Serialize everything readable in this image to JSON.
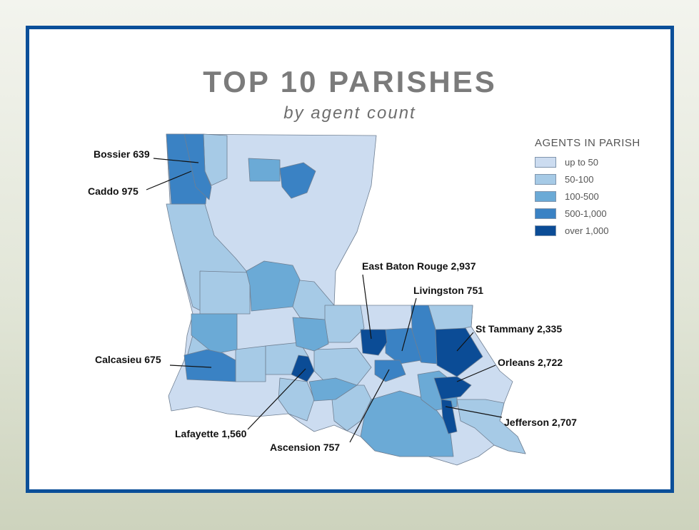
{
  "title": "TOP 10 PARISHES",
  "subtitle": "by agent count",
  "legend": {
    "title": "AGENTS IN PARISH",
    "items": [
      {
        "label": "up to 50",
        "color": "#ccdcf0"
      },
      {
        "label": "50-100",
        "color": "#a6cae6"
      },
      {
        "label": "100-500",
        "color": "#6baad6"
      },
      {
        "label": "500-1,000",
        "color": "#3a82c4"
      },
      {
        "label": "over 1,000",
        "color": "#0b4c96"
      }
    ]
  },
  "parishes": [
    {
      "label": "Bossier 639",
      "value": 639
    },
    {
      "label": "Caddo 975",
      "value": 975
    },
    {
      "label": "East Baton Rouge 2,937",
      "value": 2937
    },
    {
      "label": "Livingston 751",
      "value": 751
    },
    {
      "label": "St Tammany 2,335",
      "value": 2335
    },
    {
      "label": "Calcasieu 675",
      "value": 675
    },
    {
      "label": "Orleans 2,722",
      "value": 2722
    },
    {
      "label": "Jefferson 2,707",
      "value": 2707
    },
    {
      "label": "Lafayette 1,560",
      "value": 1560
    },
    {
      "label": "Ascension 757",
      "value": 757
    }
  ]
}
